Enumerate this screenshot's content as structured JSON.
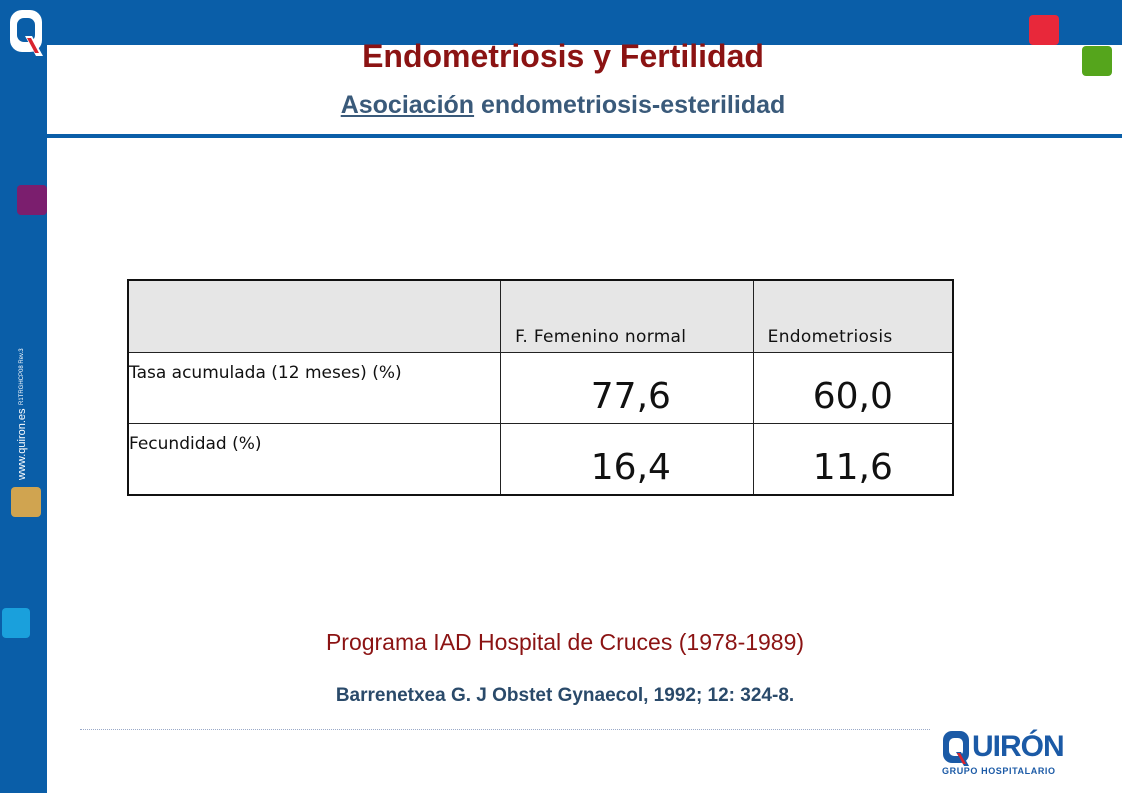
{
  "header": {
    "title": "Endometriosis y Fertilidad",
    "subtitle_underlined": "Asociación",
    "subtitle_rest": " endometriosis-esterilidad"
  },
  "sidebar": {
    "url": "www.quiron.es",
    "code": "R1TRGHCP08 Rev.3"
  },
  "table": {
    "columns": [
      "",
      "F. Femenino normal",
      "Endometriosis"
    ],
    "rows": [
      {
        "label": "Tasa acumulada (12 meses) (%)",
        "values": [
          "77,6",
          "60,0"
        ]
      },
      {
        "label": "Fecundidad (%)",
        "values": [
          "16,4",
          "11,6"
        ]
      }
    ]
  },
  "footer": {
    "program": "Programa IAD Hospital de Cruces (1978-1989)",
    "citation": "Barrenetxea G. J Obstet Gynaecol, 1992; 12: 324-8."
  },
  "brand": {
    "name": "UIRÓN",
    "tagline": "GRUPO HOSPITALARIO"
  },
  "colors": {
    "frame_blue": "#0a5ea8",
    "title_red": "#8b1313",
    "square_red": "#e8283a",
    "square_green": "#55a51c",
    "square_purple": "#7b1e6e",
    "square_gold": "#d0a450",
    "square_cyan": "#1aa0dc"
  }
}
